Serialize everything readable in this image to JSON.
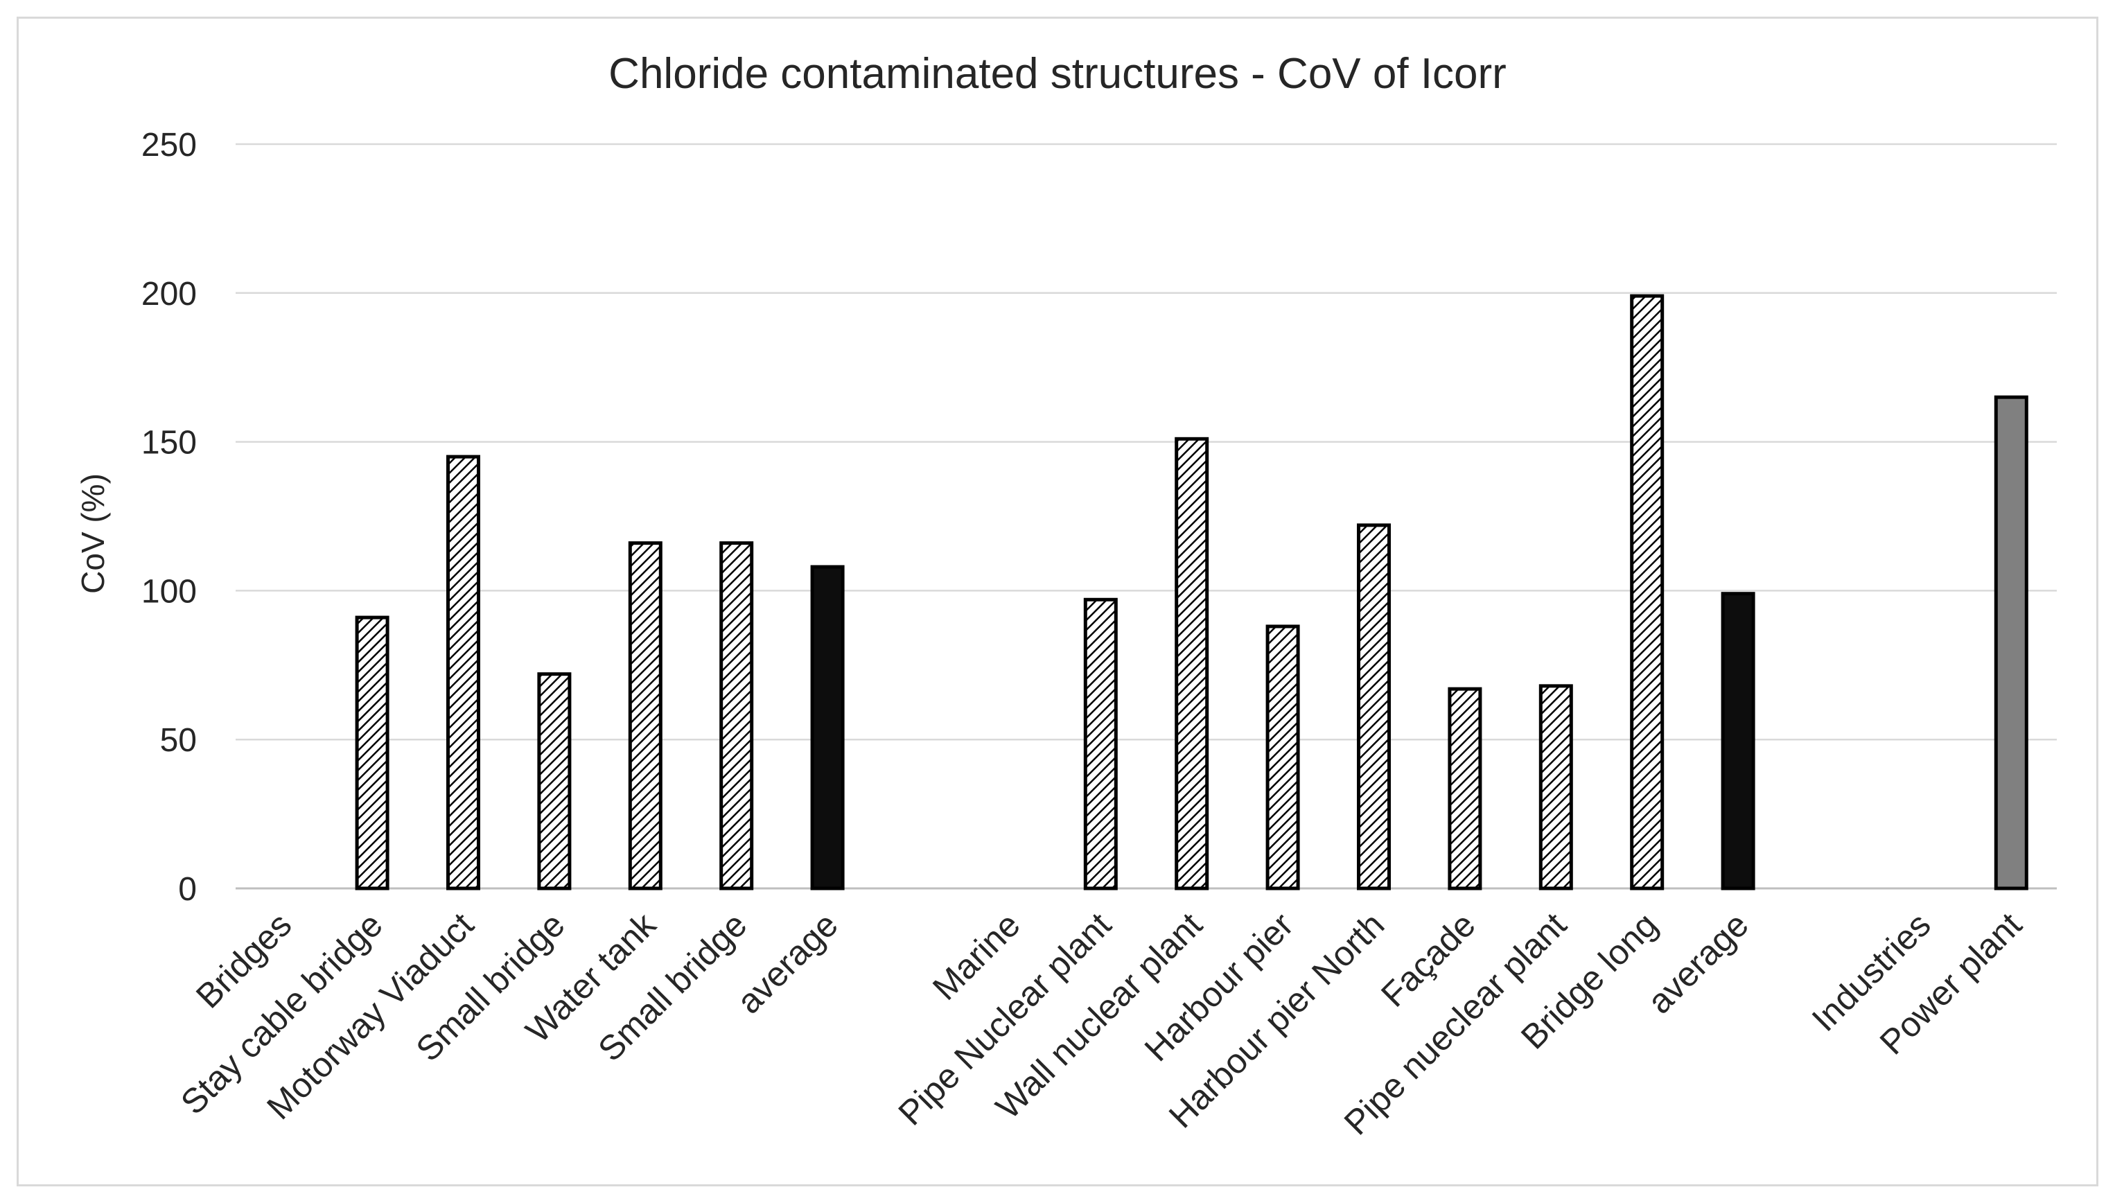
{
  "chart_data": {
    "type": "bar",
    "title": "Chloride  contaminated structures - CoV of Icorr",
    "xlabel": "",
    "ylabel": "CoV (%)",
    "ylim": [
      0,
      250
    ],
    "yticks": [
      0,
      50,
      100,
      150,
      200,
      250
    ],
    "grid": true,
    "categories": [
      "Bridges",
      "Stay cable bridge",
      "Motorway Viaduct",
      "Small bridge",
      "Water tank",
      "Small bridge",
      "average",
      "",
      "Marine",
      "Pipe Nuclear plant",
      "Wall nuclear plant",
      "Harbour pier",
      "Harbour pier North",
      "Façade",
      "Pipe nueclear plant",
      "Bridge long",
      "average",
      "",
      "Industries",
      "Power plant"
    ],
    "values": [
      null,
      91,
      145,
      72,
      116,
      116,
      108,
      null,
      null,
      97,
      151,
      88,
      122,
      67,
      68,
      199,
      99,
      null,
      null,
      165
    ],
    "styles": [
      "none",
      "hatched",
      "hatched",
      "hatched",
      "hatched",
      "hatched",
      "solid-black",
      "none",
      "none",
      "hatched",
      "hatched",
      "hatched",
      "hatched",
      "hatched",
      "hatched",
      "hatched",
      "solid-black",
      "none",
      "none",
      "solid-gray"
    ],
    "colors": {
      "hatch": "#000000",
      "average": "#0d0d0d",
      "power": "#808080",
      "grid": "#d9d9d9",
      "text": "#262626"
    }
  }
}
